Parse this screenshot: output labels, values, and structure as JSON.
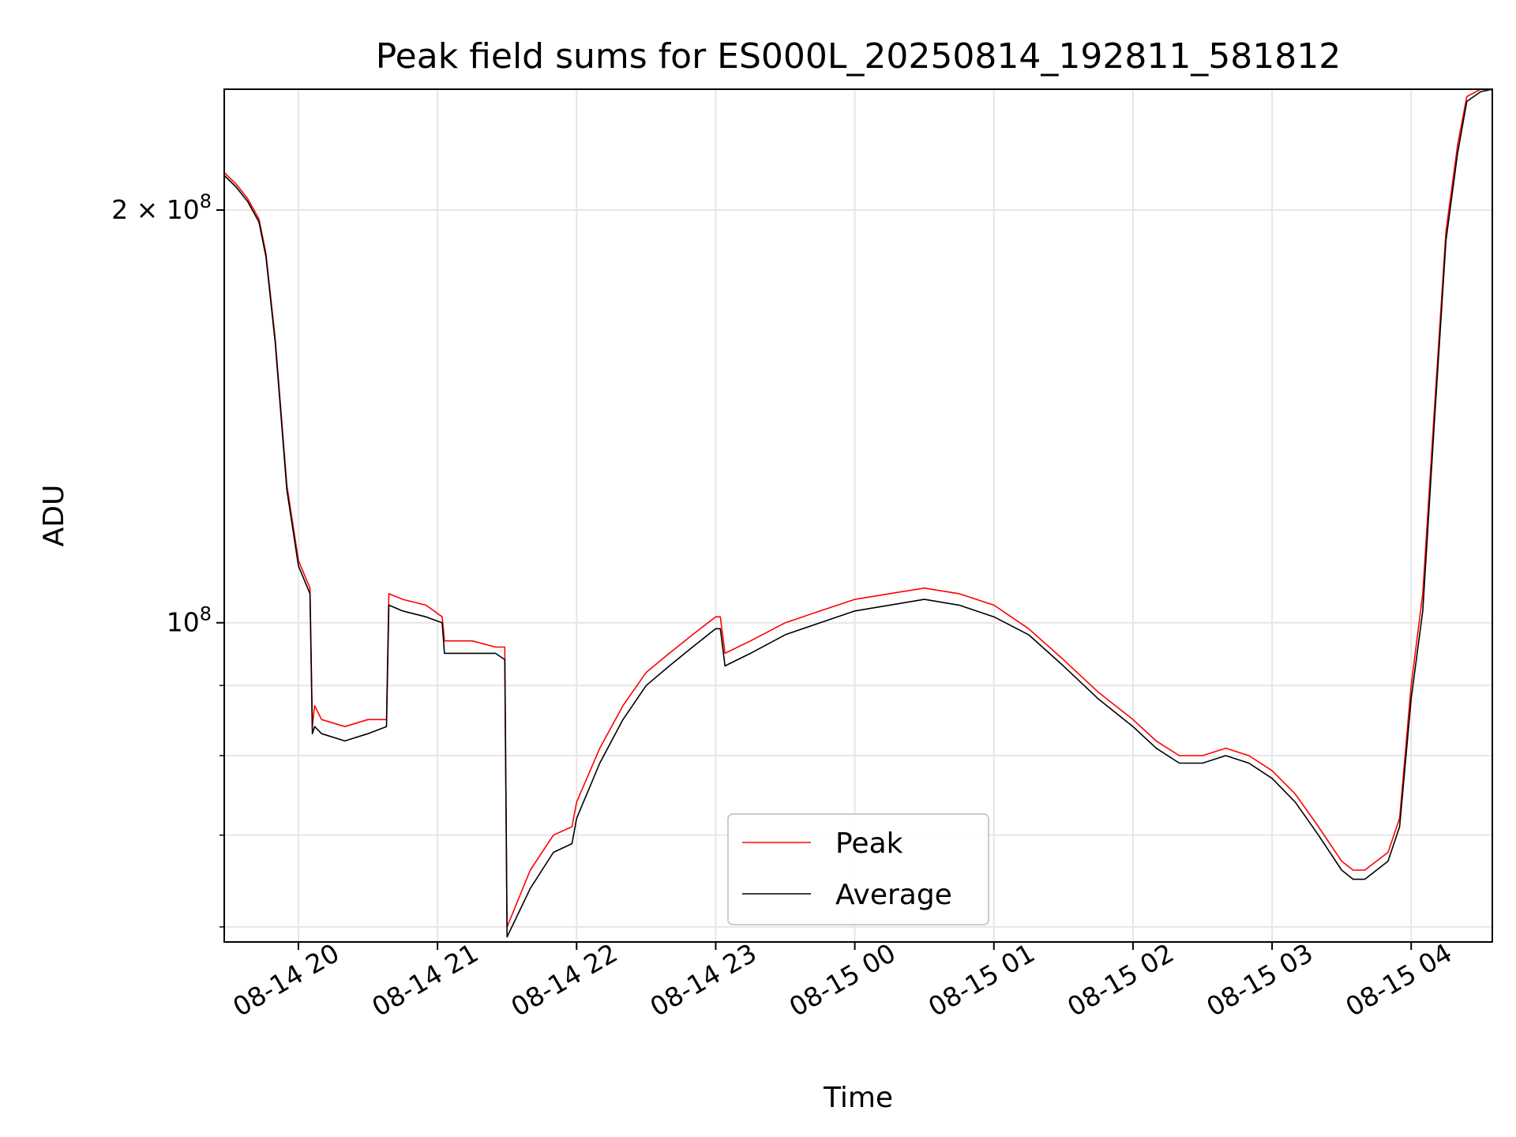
{
  "chart_data": {
    "type": "line",
    "title": "Peak field sums for ES000L_20250814_192811_581812",
    "xlabel": "Time",
    "ylabel": "ADU",
    "yscale": "log",
    "grid": true,
    "legend_position": "lower-center",
    "xlim": [
      "2025-08-14 19:28",
      "2025-08-15 04:35"
    ],
    "ylim": [
      58500000,
      245000000
    ],
    "x_ticks": [
      {
        "value": "2025-08-14 20:00",
        "label": "08-14 20"
      },
      {
        "value": "2025-08-14 21:00",
        "label": "08-14 21"
      },
      {
        "value": "2025-08-14 22:00",
        "label": "08-14 22"
      },
      {
        "value": "2025-08-14 23:00",
        "label": "08-14 23"
      },
      {
        "value": "2025-08-15 00:00",
        "label": "08-15 00"
      },
      {
        "value": "2025-08-15 01:00",
        "label": "08-15 01"
      },
      {
        "value": "2025-08-15 02:00",
        "label": "08-15 02"
      },
      {
        "value": "2025-08-15 03:00",
        "label": "08-15 03"
      },
      {
        "value": "2025-08-15 04:00",
        "label": "08-15 04"
      }
    ],
    "y_ticks_major": [
      {
        "value": 100000000,
        "label_base": "10",
        "label_exp": "8"
      },
      {
        "value": 200000000,
        "label_base": "2 × 10",
        "label_exp": "8"
      }
    ],
    "y_ticks_minor": [
      60000000,
      70000000,
      80000000,
      90000000
    ],
    "x": [
      "2025-08-14 19:28",
      "2025-08-14 19:33",
      "2025-08-14 19:38",
      "2025-08-14 19:43",
      "2025-08-14 19:46",
      "2025-08-14 19:50",
      "2025-08-14 19:55",
      "2025-08-14 20:00",
      "2025-08-14 20:05",
      "2025-08-14 20:06",
      "2025-08-14 20:07",
      "2025-08-14 20:10",
      "2025-08-14 20:20",
      "2025-08-14 20:30",
      "2025-08-14 20:38",
      "2025-08-14 20:39",
      "2025-08-14 20:45",
      "2025-08-14 20:55",
      "2025-08-14 21:02",
      "2025-08-14 21:03",
      "2025-08-14 21:15",
      "2025-08-14 21:25",
      "2025-08-14 21:29",
      "2025-08-14 21:30",
      "2025-08-14 21:40",
      "2025-08-14 21:50",
      "2025-08-14 21:58",
      "2025-08-14 22:00",
      "2025-08-14 22:10",
      "2025-08-14 22:20",
      "2025-08-14 22:30",
      "2025-08-14 22:40",
      "2025-08-14 22:50",
      "2025-08-14 23:00",
      "2025-08-14 23:02",
      "2025-08-14 23:04",
      "2025-08-14 23:15",
      "2025-08-14 23:30",
      "2025-08-14 23:45",
      "2025-08-15 00:00",
      "2025-08-15 00:15",
      "2025-08-15 00:30",
      "2025-08-15 00:45",
      "2025-08-15 01:00",
      "2025-08-15 01:15",
      "2025-08-15 01:30",
      "2025-08-15 01:45",
      "2025-08-15 02:00",
      "2025-08-15 02:10",
      "2025-08-15 02:20",
      "2025-08-15 02:30",
      "2025-08-15 02:40",
      "2025-08-15 02:50",
      "2025-08-15 03:00",
      "2025-08-15 03:10",
      "2025-08-15 03:20",
      "2025-08-15 03:30",
      "2025-08-15 03:35",
      "2025-08-15 03:40",
      "2025-08-15 03:50",
      "2025-08-15 03:55",
      "2025-08-15 04:00",
      "2025-08-15 04:05",
      "2025-08-15 04:10",
      "2025-08-15 04:15",
      "2025-08-15 04:20",
      "2025-08-15 04:24",
      "2025-08-15 04:30",
      "2025-08-15 04:35"
    ],
    "series": [
      {
        "name": "Average",
        "color": "#000000",
        "values": [
          212000000,
          208000000,
          203000000,
          196000000,
          185000000,
          160000000,
          125000000,
          110000000,
          105000000,
          83000000,
          84000000,
          83000000,
          82000000,
          83000000,
          84000000,
          103000000,
          102000000,
          101000000,
          100000000,
          95000000,
          95000000,
          95000000,
          94000000,
          59000000,
          64000000,
          68000000,
          69000000,
          72000000,
          79000000,
          85000000,
          90000000,
          93000000,
          96000000,
          99000000,
          99000000,
          93000000,
          95000000,
          98000000,
          100000000,
          102000000,
          103000000,
          104000000,
          103000000,
          101000000,
          98000000,
          93000000,
          88000000,
          84000000,
          81000000,
          79000000,
          79000000,
          80000000,
          79000000,
          77000000,
          74000000,
          70000000,
          66000000,
          65000000,
          65000000,
          67000000,
          71000000,
          88000000,
          102000000,
          140000000,
          190000000,
          220000000,
          240000000,
          244000000,
          245000000
        ]
      },
      {
        "name": "Peak",
        "color": "#ff0000",
        "values": [
          213000000,
          209000000,
          204000000,
          197000000,
          186000000,
          161000000,
          126000000,
          111000000,
          106000000,
          84000000,
          87000000,
          85000000,
          84000000,
          85000000,
          85000000,
          105000000,
          104000000,
          103000000,
          101000000,
          97000000,
          97000000,
          96000000,
          96000000,
          60000000,
          66000000,
          70000000,
          71000000,
          74000000,
          81000000,
          87000000,
          92000000,
          95000000,
          98000000,
          101000000,
          101000000,
          95000000,
          97000000,
          100000000,
          102000000,
          104000000,
          105000000,
          106000000,
          105000000,
          103000000,
          99000000,
          94000000,
          89000000,
          85000000,
          82000000,
          80000000,
          80000000,
          81000000,
          80000000,
          78000000,
          75000000,
          71000000,
          67000000,
          66000000,
          66000000,
          68000000,
          72000000,
          90000000,
          105000000,
          143000000,
          193000000,
          223000000,
          242000000,
          245000000,
          245000000
        ]
      }
    ]
  }
}
